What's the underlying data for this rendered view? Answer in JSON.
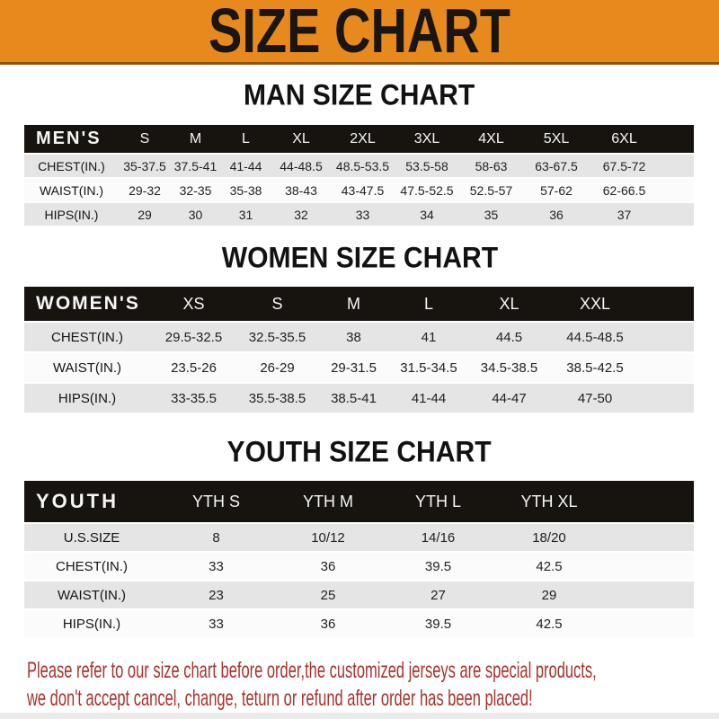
{
  "banner": {
    "title": "SIZE CHART"
  },
  "colors": {
    "banner_bg": "#E8891E",
    "header_bar_bg": "#17130F",
    "row_gray": "#E5E5E5",
    "row_white": "#FBFBFB",
    "footer_text": "#A6332C"
  },
  "sections": [
    {
      "id": "men",
      "title": "MAN SIZE CHART",
      "corner_label": "MEN'S",
      "columns": [
        "S",
        "M",
        "L",
        "XL",
        "2XL",
        "3XL",
        "4XL",
        "5XL",
        "6XL"
      ],
      "rows": [
        {
          "label": "CHEST(IN.)",
          "values": [
            "35-37.5",
            "37.5-41",
            "41-44",
            "44-48.5",
            "48.5-53.5",
            "53.5-58",
            "58-63",
            "63-67.5",
            "67.5-72"
          ]
        },
        {
          "label": "WAIST(IN.)",
          "values": [
            "29-32",
            "32-35",
            "35-38",
            "38-43",
            "43-47.5",
            "47.5-52.5",
            "52.5-57",
            "57-62",
            "62-66.5"
          ]
        },
        {
          "label": "HIPS(IN.)",
          "values": [
            "29",
            "30",
            "31",
            "32",
            "33",
            "34",
            "35",
            "36",
            "37"
          ]
        }
      ]
    },
    {
      "id": "women",
      "title": "WOMEN SIZE CHART",
      "corner_label": "WOMEN'S",
      "columns": [
        "XS",
        "S",
        "M",
        "L",
        "XL",
        "XXL"
      ],
      "rows": [
        {
          "label": "CHEST(IN.)",
          "values": [
            "29.5-32.5",
            "32.5-35.5",
            "38",
            "41",
            "44.5",
            "44.5-48.5"
          ]
        },
        {
          "label": "WAIST(IN.)",
          "values": [
            "23.5-26",
            "26-29",
            "29-31.5",
            "31.5-34.5",
            "34.5-38.5",
            "38.5-42.5"
          ]
        },
        {
          "label": "HIPS(IN.)",
          "values": [
            "33-35.5",
            "35.5-38.5",
            "38.5-41",
            "41-44",
            "44-47",
            "47-50"
          ]
        }
      ]
    },
    {
      "id": "youth",
      "title": "YOUTH SIZE CHART",
      "corner_label": "YOUTH",
      "columns": [
        "YTH S",
        "YTH M",
        "YTH L",
        "YTH XL"
      ],
      "rows": [
        {
          "label": "U.S.SIZE",
          "values": [
            "8",
            "10/12",
            "14/16",
            "18/20"
          ]
        },
        {
          "label": "CHEST(IN.)",
          "values": [
            "33",
            "36",
            "39.5",
            "42.5"
          ]
        },
        {
          "label": "WAIST(IN.)",
          "values": [
            "23",
            "25",
            "27",
            "29"
          ]
        },
        {
          "label": "HIPS(IN.)",
          "values": [
            "33",
            "36",
            "39.5",
            "42.5"
          ]
        }
      ]
    }
  ],
  "footer": {
    "line1": "Please refer to our size chart before order,the customized jerseys are special products,",
    "line2": "we don't accept cancel, change, teturn or refund after order has been placed!"
  }
}
